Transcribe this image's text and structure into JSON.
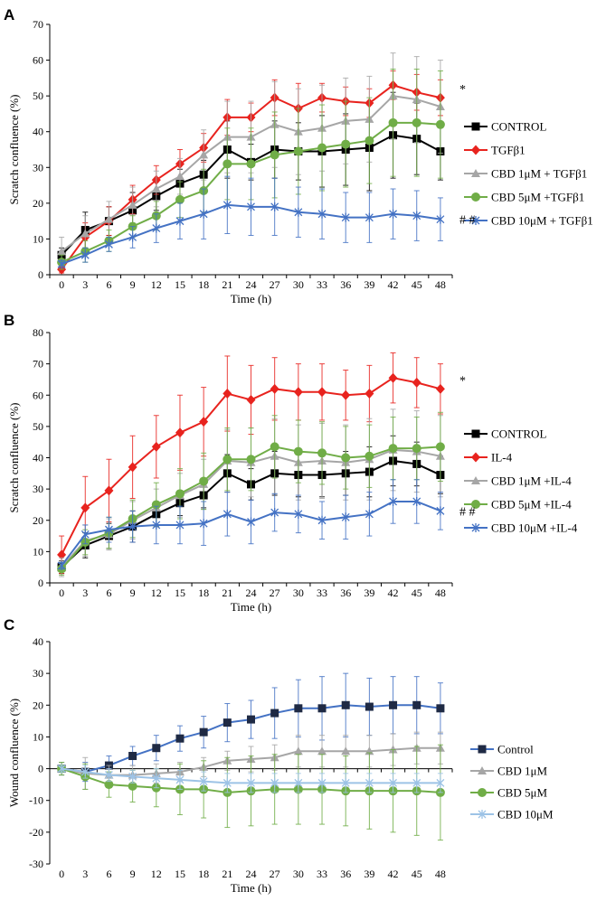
{
  "chart_data": [
    {
      "panel": "A",
      "type": "line",
      "xlabel": "Time (h)",
      "ylabel": "Scratch confluence (%)",
      "ylim": [
        0,
        70
      ],
      "ytick_step": 10,
      "x": [
        0,
        3,
        6,
        9,
        12,
        15,
        18,
        21,
        24,
        27,
        30,
        33,
        36,
        39,
        42,
        45,
        48
      ],
      "series": [
        {
          "name": "CONTROL",
          "color": "#000000",
          "marker": "square",
          "values": [
            5.5,
            12.5,
            15,
            18,
            22,
            25.5,
            28,
            35,
            31.5,
            35,
            34.5,
            34.5,
            35,
            35.5,
            39,
            38,
            34.5
          ],
          "errors": [
            2,
            5,
            4,
            5,
            4,
            4,
            4,
            8,
            5,
            8,
            8,
            10,
            10,
            12,
            12,
            10,
            8
          ]
        },
        {
          "name": "TGFβ1",
          "color": "#e8231e",
          "marker": "diamond",
          "values": [
            1.5,
            10.5,
            15,
            21,
            26.5,
            31,
            35.5,
            44,
            44,
            49.5,
            46.5,
            49.5,
            48.5,
            48,
            53,
            51,
            49.5
          ],
          "errors": [
            1,
            4,
            4,
            4,
            4,
            4,
            4,
            5,
            4,
            5,
            7,
            4,
            4,
            4,
            4,
            5,
            5
          ]
        },
        {
          "name": "CBD 1μM + TGFβ1",
          "color": "#a6a6a6",
          "marker": "triangle",
          "values": [
            6.5,
            11.5,
            15.5,
            19.5,
            24,
            27.5,
            33.5,
            38.5,
            38.5,
            42,
            40,
            41,
            43,
            43.5,
            50,
            49,
            47
          ],
          "errors": [
            4,
            5,
            5,
            5,
            5,
            5,
            7,
            10,
            10,
            12,
            12,
            12,
            12,
            12,
            12,
            12,
            13
          ]
        },
        {
          "name": "CBD 5μM +TGFβ1",
          "color": "#70ad47",
          "marker": "circle",
          "values": [
            3.5,
            6.5,
            9.5,
            13.5,
            16.5,
            21,
            23.5,
            31,
            31,
            33.5,
            34.5,
            35.5,
            36.5,
            37.5,
            42.5,
            42.5,
            42
          ],
          "errors": [
            2,
            3,
            3,
            3,
            4,
            5,
            6,
            10,
            10,
            12,
            12,
            12,
            12,
            12,
            15,
            15,
            15
          ]
        },
        {
          "name": "CBD 10μM + TGFβ1",
          "color": "#4472c4",
          "marker": "star",
          "values": [
            3,
            5.5,
            8.5,
            10.5,
            13,
            15,
            17,
            19.5,
            19,
            19,
            17.5,
            17,
            16,
            16,
            17,
            16.5,
            15.5
          ],
          "errors": [
            1,
            2,
            2,
            3,
            4,
            5,
            7,
            8,
            8,
            8,
            7,
            7,
            7,
            7,
            7,
            7,
            6
          ]
        }
      ],
      "annotations": [
        {
          "text": "*",
          "series": 1
        },
        {
          "text": "# #",
          "series": 4
        }
      ]
    },
    {
      "panel": "B",
      "type": "line",
      "xlabel": "Time (h)",
      "ylabel": "Scratch confluence (%)",
      "ylim": [
        0,
        80
      ],
      "ytick_step": 10,
      "x": [
        0,
        3,
        6,
        9,
        12,
        15,
        18,
        21,
        24,
        27,
        30,
        33,
        36,
        39,
        42,
        45,
        48
      ],
      "series": [
        {
          "name": "CONTROL",
          "color": "#000000",
          "marker": "square",
          "values": [
            5,
            12,
            15,
            18,
            22,
            25.5,
            28,
            35,
            31.5,
            35,
            34.5,
            34.5,
            35,
            35.5,
            39,
            38,
            34.5
          ],
          "errors": [
            2,
            4,
            4,
            5,
            4,
            4,
            4,
            6,
            5,
            7,
            7,
            7,
            7,
            8,
            8,
            7,
            6
          ]
        },
        {
          "name": "IL-4",
          "color": "#e8231e",
          "marker": "diamond",
          "values": [
            9,
            24,
            29.5,
            37,
            43.5,
            48,
            51.5,
            60.5,
            58.5,
            62,
            61,
            61,
            60,
            60.5,
            65.5,
            64,
            62
          ],
          "errors": [
            6,
            10,
            10,
            10,
            10,
            12,
            11,
            12,
            11,
            10,
            9,
            9,
            8,
            9,
            8,
            8,
            8
          ]
        },
        {
          "name": "CBD 1μM +IL-4",
          "color": "#a6a6a6",
          "marker": "triangle",
          "values": [
            5,
            13.5,
            15.5,
            20,
            24,
            28,
            31.5,
            39,
            38.5,
            40.5,
            38.5,
            39,
            38.5,
            39.5,
            42.5,
            42,
            40.5
          ],
          "errors": [
            3,
            5,
            5,
            6,
            6,
            7,
            8,
            10,
            11,
            12,
            12,
            12,
            12,
            13,
            13,
            13,
            13
          ]
        },
        {
          "name": "CBD 5μM +IL-4",
          "color": "#70ad47",
          "marker": "circle",
          "values": [
            4.5,
            13,
            16,
            20.5,
            25,
            28.5,
            32.5,
            39.5,
            39.5,
            43.5,
            42,
            41.5,
            40,
            40.5,
            43,
            43,
            43.5
          ],
          "errors": [
            2,
            4,
            5,
            6,
            7,
            8,
            9,
            10,
            10,
            10,
            10,
            10,
            10,
            10,
            10,
            10,
            11
          ]
        },
        {
          "name": "CBD 10μM +IL-4",
          "color": "#4472c4",
          "marker": "star",
          "values": [
            5.5,
            15.5,
            17,
            18,
            18.5,
            18.5,
            19,
            22,
            19.5,
            22.5,
            22,
            20,
            21,
            22,
            26,
            26,
            23
          ],
          "errors": [
            1,
            3,
            4,
            5,
            6,
            6,
            7,
            7,
            7,
            6,
            6,
            6,
            7,
            7,
            7,
            7,
            6
          ]
        }
      ],
      "annotations": [
        {
          "text": "*",
          "series": 1
        },
        {
          "text": "# #",
          "series": 4
        }
      ]
    },
    {
      "panel": "C",
      "type": "line",
      "xlabel": "Time (h)",
      "ylabel": "Wound confluence (%)",
      "ylim": [
        -30,
        40
      ],
      "ytick_step": 10,
      "x": [
        0,
        3,
        6,
        9,
        12,
        15,
        18,
        21,
        24,
        27,
        30,
        33,
        36,
        39,
        42,
        45,
        48
      ],
      "series": [
        {
          "name": "Control",
          "color": "#4472c4",
          "marker": "square-dark",
          "values": [
            0,
            -1,
            1,
            4,
            6.5,
            9.5,
            11.5,
            14.5,
            15.5,
            17.5,
            19,
            19,
            20,
            19.5,
            20,
            20,
            19
          ],
          "errors": [
            2,
            3,
            3,
            3,
            4,
            4,
            5,
            6,
            6,
            8,
            9,
            10,
            10,
            9,
            9,
            9,
            8
          ]
        },
        {
          "name": "CBD 1μM",
          "color": "#a6a6a6",
          "marker": "triangle",
          "values": [
            0,
            -1.5,
            -2,
            -2,
            -1.5,
            -1,
            0.5,
            2.5,
            3,
            3.5,
            5.5,
            5.5,
            5.5,
            5.5,
            6,
            6.5,
            6.5
          ],
          "errors": [
            2,
            5,
            3,
            3,
            3,
            3,
            3,
            3,
            4,
            4,
            5,
            5,
            5,
            5,
            5,
            5,
            5
          ]
        },
        {
          "name": "CBD 5μM",
          "color": "#70ad47",
          "marker": "circle",
          "values": [
            0,
            -2.5,
            -5,
            -5.5,
            -6,
            -6.5,
            -6.5,
            -7.5,
            -7,
            -6.5,
            -6.5,
            -6.5,
            -7,
            -7,
            -7,
            -7,
            -7.5
          ],
          "errors": [
            2,
            4,
            4,
            5,
            6,
            8,
            9,
            11,
            11,
            11,
            11,
            11,
            11,
            12,
            13,
            14,
            15
          ]
        },
        {
          "name": "CBD 10μM",
          "color": "#9dc3e6",
          "marker": "star",
          "values": [
            0,
            -1,
            -2,
            -2.5,
            -3,
            -3.5,
            -4,
            -4.5,
            -4.5,
            -4.5,
            -4.5,
            -4.5,
            -4.5,
            -4.5,
            -4.5,
            -4.5,
            -4.5
          ],
          "errors": [
            1,
            2,
            2,
            2,
            3,
            3,
            3,
            3,
            3,
            3,
            3,
            3,
            3,
            3,
            3,
            3,
            3
          ]
        }
      ],
      "annotations": []
    }
  ]
}
